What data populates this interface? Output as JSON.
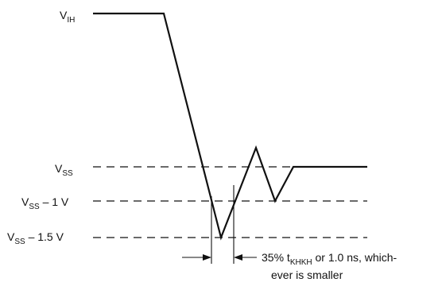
{
  "diagram": {
    "labels": {
      "vih": {
        "main": "V",
        "sub": "IH",
        "rest": ""
      },
      "vss": {
        "main": "V",
        "sub": "SS",
        "rest": ""
      },
      "vss_1v": {
        "main": "V",
        "sub": "SS",
        "rest": " – 1 V"
      },
      "vss_1_5v": {
        "main": "V",
        "sub": "SS",
        "rest": " – 1.5 V"
      }
    },
    "annotation": {
      "line1_prefix": "35% t",
      "line1_sub": "KHKH",
      "line1_suffix": " or 1.0 ns, which-",
      "line2": "ever is smaller"
    }
  }
}
